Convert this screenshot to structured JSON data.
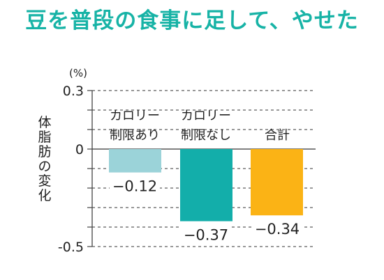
{
  "title": "豆を普段の食事に足して、やせた",
  "colors": {
    "title": "#17b3a6",
    "axis": "#444444",
    "grid": "#333333",
    "zero_line": "#333333"
  },
  "chart_data": {
    "type": "bar",
    "ylabel": "体脂肪の変化",
    "yunit": "(%)",
    "ylim": [
      -0.5,
      0.3
    ],
    "yticks": [
      {
        "value": 0.3,
        "label": "0.3"
      },
      {
        "value": 0,
        "label": "0"
      },
      {
        "value": -0.5,
        "label": "-0.5"
      }
    ],
    "grid_step": 0.1,
    "grid": true,
    "categories": [
      {
        "line1": "カロリー",
        "line2": "制限あり"
      },
      {
        "line1": "カロリー",
        "line2": "制限なし"
      },
      {
        "line1": "合計",
        "line2": ""
      }
    ],
    "values": [
      -0.12,
      -0.37,
      -0.34
    ],
    "value_labels": [
      "−0.12",
      "−0.37",
      "−0.34"
    ],
    "bar_colors": [
      "#9bd3d9",
      "#13aeaa",
      "#fbb315"
    ]
  }
}
